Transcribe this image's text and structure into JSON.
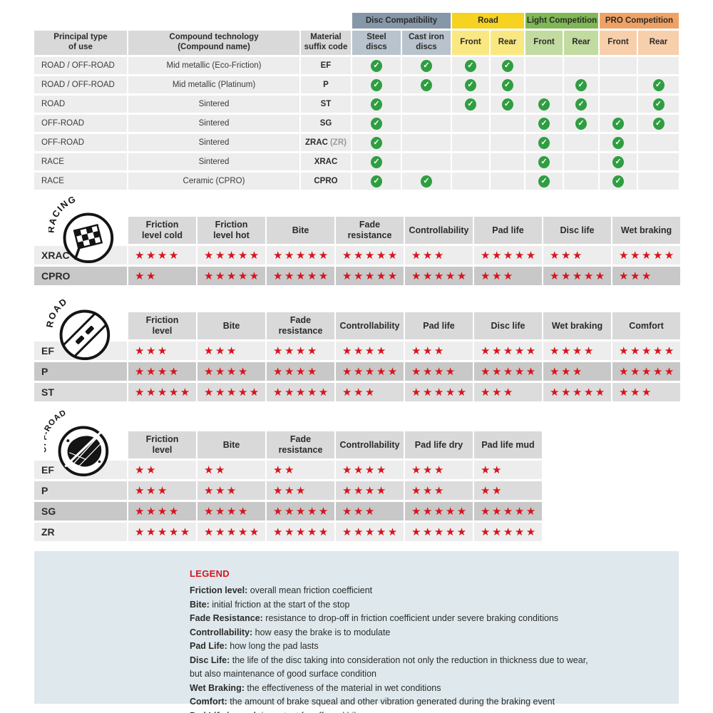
{
  "icons": {
    "star": "★",
    "check": "✓"
  },
  "colors": {
    "star_red": "#d7141c",
    "check_green": "#2f9e41",
    "header_gray": "#d9d9d9",
    "row_light": "#ededed",
    "row_mid": "#dcdcdc",
    "row_dark": "#c8c8c8",
    "legend_bg": "#dfe9ed",
    "disc_compat_header": "#8697a9",
    "disc_compat_sub": "#b9c3cd",
    "road_header": "#f6d221",
    "road_sub": "#f9e882",
    "light_comp_header": "#7fb854",
    "light_comp_sub": "#c2dba0",
    "pro_comp_header": "#efa264",
    "pro_comp_sub": "#f8cfab"
  },
  "shades": {
    "light": "#ededed",
    "mid": "#dcdcdc",
    "dark": "#c8c8c8"
  },
  "chart_data": [
    {
      "type": "table",
      "name": "compound_compatibility",
      "main_headers": [
        "Principal type\nof use",
        "Compound technology\n(Compound name)",
        "Material\nsuffix code"
      ],
      "groups": [
        {
          "label": "Disc Compatibility",
          "header_bg": "#8697a9",
          "sub_bg": "#b9c3cd",
          "subs": [
            "Steel\ndiscs",
            "Cast iron\ndiscs"
          ]
        },
        {
          "label": "Road",
          "header_bg": "#f6d221",
          "sub_bg": "#f9e882",
          "subs": [
            "Front",
            "Rear"
          ]
        },
        {
          "label": "Light Competition",
          "header_bg": "#7fb854",
          "sub_bg": "#c2dba0",
          "subs": [
            "Front",
            "Rear"
          ]
        },
        {
          "label": "PRO Competition",
          "header_bg": "#efa264",
          "sub_bg": "#f8cfab",
          "subs": [
            "Front",
            "Rear"
          ]
        }
      ],
      "rows": [
        {
          "use": "ROAD / OFF-ROAD",
          "compound": "Mid metallic (Eco-Friction)",
          "code": "EF",
          "code_note": "",
          "checks": [
            1,
            1,
            1,
            1,
            0,
            0,
            0,
            0
          ]
        },
        {
          "use": "ROAD / OFF-ROAD",
          "compound": "Mid metallic (Platinum)",
          "code": "P",
          "code_note": "",
          "checks": [
            1,
            1,
            1,
            1,
            0,
            1,
            0,
            1
          ]
        },
        {
          "use": "ROAD",
          "compound": "Sintered",
          "code": "ST",
          "code_note": "",
          "checks": [
            1,
            0,
            1,
            1,
            1,
            1,
            0,
            1
          ]
        },
        {
          "use": "OFF-ROAD",
          "compound": "Sintered",
          "code": "SG",
          "code_note": "",
          "checks": [
            1,
            0,
            0,
            0,
            1,
            1,
            1,
            1
          ]
        },
        {
          "use": "OFF-ROAD",
          "compound": "Sintered",
          "code": "ZRAC",
          "code_note": "(ZR)",
          "checks": [
            1,
            0,
            0,
            0,
            1,
            0,
            1,
            0
          ]
        },
        {
          "use": "RACE",
          "compound": "Sintered",
          "code": "XRAC",
          "code_note": "",
          "checks": [
            1,
            0,
            0,
            0,
            1,
            0,
            1,
            0
          ]
        },
        {
          "use": "RACE",
          "compound": "Ceramic (CPRO)",
          "code": "CPRO",
          "code_note": "",
          "checks": [
            1,
            1,
            0,
            0,
            1,
            0,
            1,
            0
          ]
        }
      ]
    },
    {
      "type": "table",
      "id": "racing",
      "icon": "racing-flag-icon",
      "icon_label": "RACING",
      "rating_max": 5,
      "columns": [
        "Friction\nlevel cold",
        "Friction\nlevel hot",
        "Bite",
        "Fade\nresistance",
        "Controllability",
        "Pad life",
        "Disc life",
        "Wet braking"
      ],
      "rows": [
        {
          "label": "XRAC",
          "shade": "light",
          "stars": [
            4,
            5,
            5,
            5,
            3,
            5,
            3,
            5
          ]
        },
        {
          "label": "CPRO",
          "shade": "dark",
          "stars": [
            2,
            5,
            5,
            5,
            5,
            3,
            5,
            3
          ]
        }
      ]
    },
    {
      "type": "table",
      "id": "road",
      "icon": "road-icon",
      "icon_label": "ROAD",
      "rating_max": 5,
      "columns": [
        "Friction\nlevel",
        "Bite",
        "Fade\nresistance",
        "Controllability",
        "Pad life",
        "Disc life",
        "Wet braking",
        "Comfort"
      ],
      "rows": [
        {
          "label": "EF",
          "shade": "light",
          "stars": [
            3,
            3,
            4,
            4,
            3,
            5,
            4,
            5
          ]
        },
        {
          "label": "P",
          "shade": "dark",
          "stars": [
            4,
            4,
            4,
            5,
            4,
            5,
            3,
            5
          ]
        },
        {
          "label": "ST",
          "shade": "mid",
          "stars": [
            5,
            5,
            5,
            3,
            5,
            3,
            5,
            3
          ]
        }
      ]
    },
    {
      "type": "table",
      "id": "offroad",
      "icon": "offroad-mud-icon",
      "icon_label": "OFF-ROAD",
      "rating_max": 5,
      "columns": [
        "Friction\nlevel",
        "Bite",
        "Fade\nresistance",
        "Controllability",
        "Pad life dry",
        "Pad life mud"
      ],
      "rows": [
        {
          "label": "EF",
          "shade": "light",
          "stars": [
            2,
            2,
            2,
            4,
            3,
            2
          ]
        },
        {
          "label": "P",
          "shade": "mid",
          "stars": [
            3,
            3,
            3,
            4,
            3,
            2
          ]
        },
        {
          "label": "SG",
          "shade": "dark",
          "stars": [
            4,
            4,
            5,
            3,
            5,
            5
          ]
        },
        {
          "label": "ZR",
          "shade": "light",
          "stars": [
            5,
            5,
            5,
            5,
            5,
            5
          ]
        }
      ]
    }
  ],
  "legend": {
    "title": "LEGEND",
    "lines": [
      {
        "term": "Friction level",
        "text": "overall mean friction coefficient"
      },
      {
        "term": "Bite",
        "text": "initial friction at the start of the stop"
      },
      {
        "term": "Fade Resistance",
        "text": "resistance to drop-off in friction coefficient under severe braking conditions"
      },
      {
        "term": "Controllability",
        "text": "how easy the brake is to modulate"
      },
      {
        "term": "Pad Life",
        "text": "how long the pad lasts"
      },
      {
        "term": "Disc Life",
        "text": "the life of the disc taking into consideration not only the reduction in thickness due to wear,"
      },
      {
        "term": "",
        "text": "but also maintenance of good surface condition"
      },
      {
        "term": "Wet Braking",
        "text": "the effectiveness of the material in wet conditions"
      },
      {
        "term": "Comfort",
        "text": "the amount of brake squeal and other vibration generated during the braking event"
      },
      {
        "term": "Pad Life in mud",
        "text": "important for off-road bikes"
      }
    ]
  }
}
